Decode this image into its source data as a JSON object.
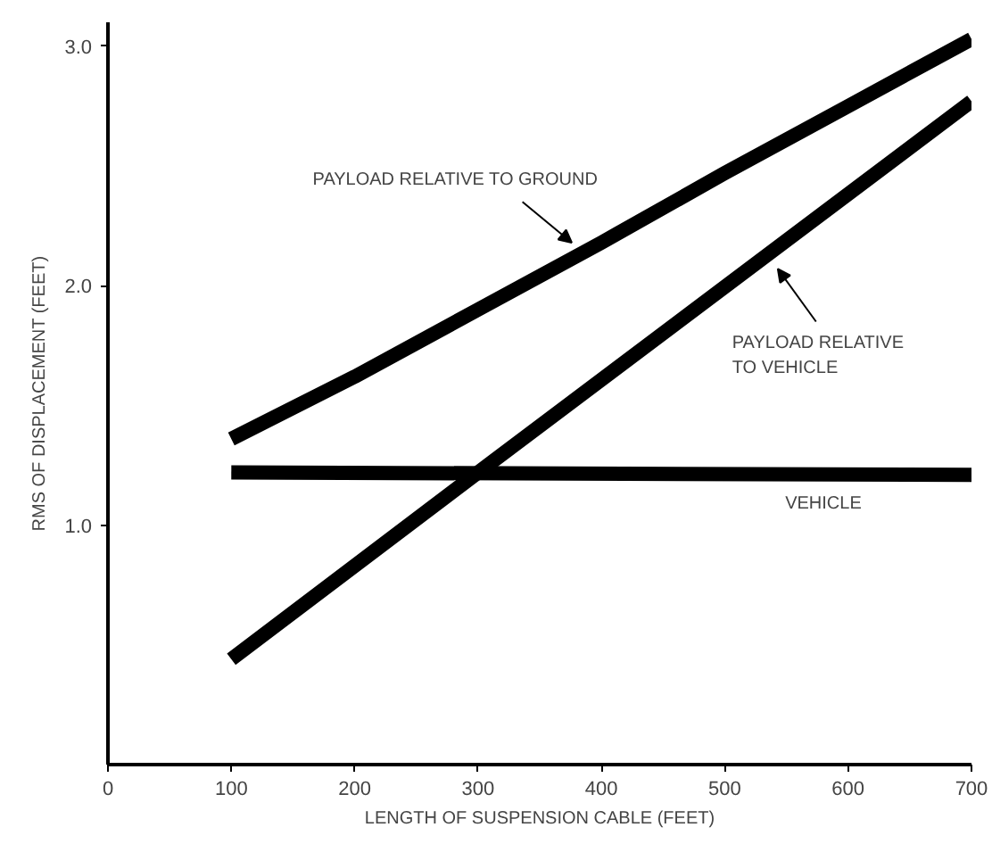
{
  "chart_data": {
    "type": "line",
    "xlabel": "LENGTH OF SUSPENSION CABLE (FEET)",
    "ylabel": "RMS OF DISPLACEMENT (FEET)",
    "xlim": [
      0,
      700
    ],
    "ylim": [
      0,
      3.1
    ],
    "xticks": [
      0,
      100,
      200,
      300,
      400,
      500,
      600,
      700
    ],
    "yticks": [
      {
        "value": 1,
        "label": "1.0"
      },
      {
        "value": 2,
        "label": "2.0"
      },
      {
        "value": 3,
        "label": "3.0"
      }
    ],
    "grid": false,
    "marker": "none",
    "line_style": "solid",
    "series": [
      {
        "color": "#000000",
        "x": [
          100,
          200,
          300,
          400,
          500,
          600,
          700
        ],
        "values": [
          1.36,
          1.62,
          1.9,
          2.18,
          2.47,
          2.75,
          3.03
        ]
      },
      {
        "color": "#000000",
        "x": [
          100,
          300,
          700
        ],
        "values": [
          0.44,
          1.22,
          2.77
        ]
      },
      {
        "color": "#000000",
        "x": [
          100,
          700
        ],
        "values": [
          1.22,
          1.21
        ]
      }
    ],
    "annotations": [
      {
        "text": "PAYLOAD RELATIVE TO GROUND",
        "x": 376,
        "y": 2.15
      },
      {
        "text": "PAYLOAD RELATIVE\nTO VEHICLE",
        "x": 543,
        "y": 2.1
      },
      {
        "text": "VEHICLE",
        "x": 560,
        "y": 1.21
      }
    ]
  }
}
